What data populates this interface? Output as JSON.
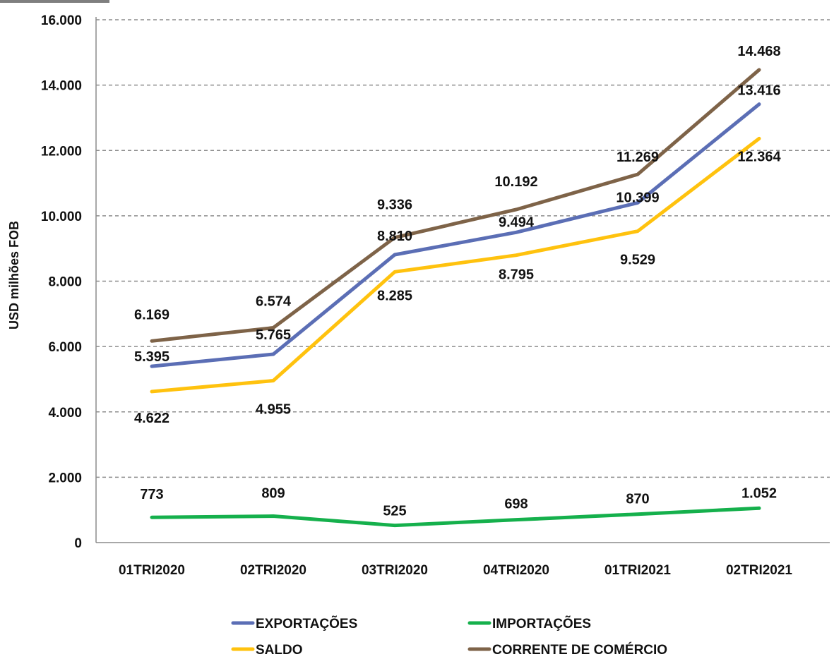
{
  "chart_data": {
    "type": "line",
    "categories": [
      "01TRI2020",
      "02TRI2020",
      "03TRI2020",
      "04TRI2020",
      "01TRI2021",
      "02TRI2021"
    ],
    "ylabel": "USD milhões FOB",
    "xlabel": "",
    "ylim": [
      0,
      16000
    ],
    "yticks": [
      "0",
      "2.000",
      "4.000",
      "6.000",
      "8.000",
      "10.000",
      "12.000",
      "14.000",
      "16.000"
    ],
    "grid": "horizontal dashed",
    "legend_position": "bottom",
    "series": [
      {
        "key": "exportacoes",
        "name": "EXPORTAÇÕES",
        "color": "#5b6eb5",
        "values": [
          5395,
          5765,
          8810,
          9494,
          10399,
          13416
        ],
        "labels": [
          "5.395",
          "5.765",
          "8.810",
          "9.494",
          "10.399",
          "13.416"
        ]
      },
      {
        "key": "importacoes",
        "name": "IMPORTAÇÕES",
        "color": "#15b04c",
        "values": [
          773,
          809,
          525,
          698,
          870,
          1052
        ],
        "labels": [
          "773",
          "809",
          "525",
          "698",
          "870",
          "1.052"
        ]
      },
      {
        "key": "saldo",
        "name": "SALDO",
        "color": "#ffc20e",
        "values": [
          4622,
          4955,
          8285,
          8795,
          9529,
          12364
        ],
        "labels": [
          "4.622",
          "4.955",
          "8.285",
          "8.795",
          "9.529",
          "12.364"
        ]
      },
      {
        "key": "corrente",
        "name": "CORRENTE DE COMÉRCIO",
        "color": "#7e6348",
        "values": [
          6169,
          6574,
          9336,
          10192,
          11269,
          14468
        ],
        "labels": [
          "6.169",
          "6.574",
          "9.336",
          "10.192",
          "11.269",
          "14.468"
        ]
      }
    ]
  }
}
